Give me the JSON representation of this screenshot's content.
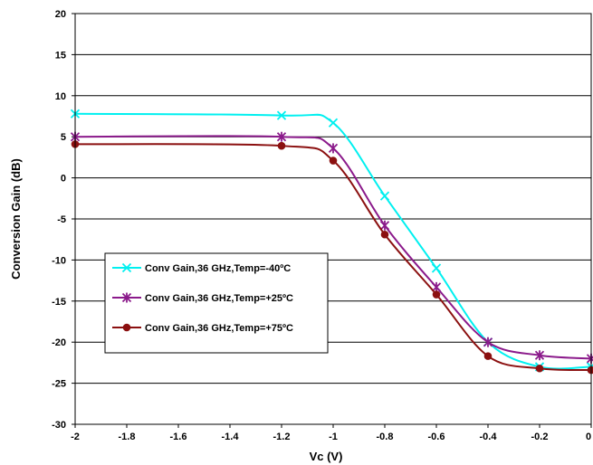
{
  "chart_data": {
    "type": "line",
    "title": "",
    "xlabel": "Vc (V)",
    "ylabel": "Conversion Gain (dB)",
    "xlim": [
      -2,
      0
    ],
    "ylim": [
      -30,
      20
    ],
    "x_ticks": [
      "-2",
      "-1.8",
      "-1.6",
      "-1.4",
      "-1.2",
      "-1",
      "-0.8",
      "-0.6",
      "-0.4",
      "-0.2",
      "0"
    ],
    "y_ticks": [
      "20",
      "15",
      "10",
      "5",
      "0",
      "-5",
      "-10",
      "-15",
      "-20",
      "-25",
      "-30"
    ],
    "grid": "horizontal",
    "legend_position": "center-left",
    "series": [
      {
        "name": "Conv Gain,36 GHz,Temp=-40ºC",
        "color": "#00f0f0",
        "marker": "x",
        "x": [
          -2,
          -1.2,
          -1,
          -0.8,
          -0.6,
          -0.4,
          -0.2,
          0
        ],
        "y": [
          7.8,
          7.6,
          6.7,
          -2.2,
          -11.0,
          -20.0,
          -23.0,
          -23.0
        ]
      },
      {
        "name": "Conv Gain,36 GHz,Temp=+25ºC",
        "color": "#8b1a8b",
        "marker": "asterisk",
        "x": [
          -2,
          -1.2,
          -1,
          -0.8,
          -0.6,
          -0.4,
          -0.2,
          0
        ],
        "y": [
          5.0,
          5.0,
          3.6,
          -5.8,
          -13.3,
          -20.0,
          -21.6,
          -22.0
        ]
      },
      {
        "name": "Conv Gain,36 GHz,Temp=+75ºC",
        "color": "#8b1010",
        "marker": "circle",
        "x": [
          -2,
          -1.2,
          -1,
          -0.8,
          -0.6,
          -0.4,
          -0.2,
          0
        ],
        "y": [
          4.1,
          3.9,
          2.1,
          -6.9,
          -14.2,
          -21.7,
          -23.2,
          -23.4
        ]
      }
    ]
  }
}
